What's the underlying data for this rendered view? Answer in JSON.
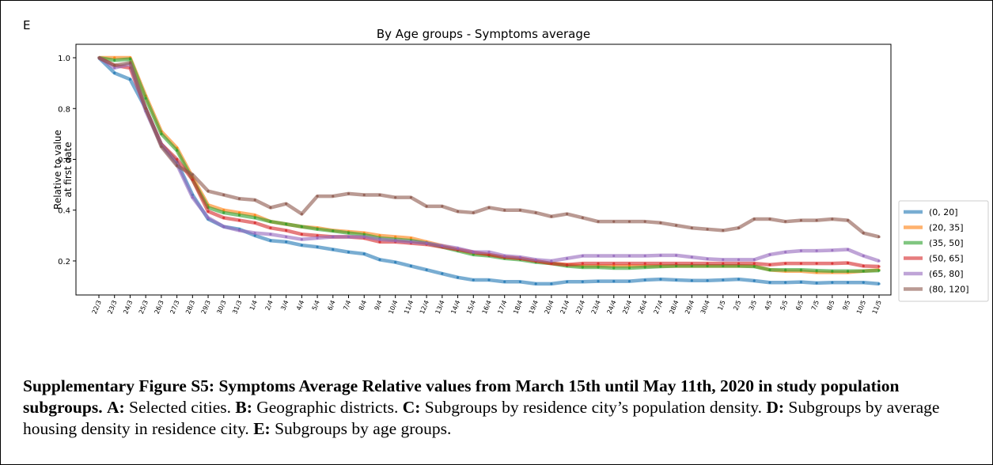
{
  "panel_label": "E",
  "chart_data": {
    "type": "line",
    "title": "By Age groups - Symptoms average",
    "ylabel": [
      "Relative to value",
      "at first date"
    ],
    "x": [
      "22/3",
      "23/3",
      "24/3",
      "25/3",
      "26/3",
      "27/3",
      "28/3",
      "29/3",
      "30/3",
      "31/3",
      "1/4",
      "2/4",
      "3/4",
      "4/4",
      "5/4",
      "6/4",
      "7/4",
      "8/4",
      "9/4",
      "10/4",
      "11/4",
      "12/4",
      "13/4",
      "14/4",
      "15/4",
      "16/4",
      "17/4",
      "18/4",
      "19/4",
      "20/4",
      "21/4",
      "22/4",
      "23/4",
      "24/4",
      "25/4",
      "26/4",
      "27/4",
      "28/4",
      "29/4",
      "30/4",
      "1/5",
      "2/5",
      "3/5",
      "4/5",
      "5/5",
      "6/5",
      "7/5",
      "8/5",
      "9/5",
      "10/5",
      "11/5"
    ],
    "ylim": [
      0.066,
      1.053
    ],
    "yticks": [
      0.2,
      0.4,
      0.6,
      0.8,
      {
        "value": 1,
        "label": "1.0"
      }
    ],
    "legend": "outside-right",
    "series": [
      {
        "name": "(0, 20]",
        "color": "#1f77b4",
        "values": [
          1.0,
          0.94,
          0.915,
          0.8,
          0.66,
          0.59,
          0.46,
          0.365,
          0.335,
          0.325,
          0.3,
          0.28,
          0.275,
          0.262,
          0.255,
          0.245,
          0.235,
          0.228,
          0.205,
          0.195,
          0.18,
          0.165,
          0.15,
          0.135,
          0.125,
          0.125,
          0.118,
          0.118,
          0.11,
          0.11,
          0.118,
          0.118,
          0.12,
          0.12,
          0.12,
          0.125,
          0.128,
          0.125,
          0.123,
          0.123,
          0.125,
          0.128,
          0.122,
          0.115,
          0.115,
          0.117,
          0.113,
          0.115,
          0.115,
          0.115,
          0.11
        ]
      },
      {
        "name": "(20, 35]",
        "color": "#ff7f0e",
        "values": [
          1.0,
          1.0,
          1.0,
          0.85,
          0.71,
          0.645,
          0.53,
          0.42,
          0.4,
          0.39,
          0.38,
          0.355,
          0.345,
          0.335,
          0.33,
          0.32,
          0.315,
          0.31,
          0.3,
          0.295,
          0.29,
          0.275,
          0.26,
          0.245,
          0.23,
          0.225,
          0.215,
          0.21,
          0.2,
          0.19,
          0.185,
          0.18,
          0.18,
          0.18,
          0.18,
          0.18,
          0.18,
          0.18,
          0.18,
          0.18,
          0.18,
          0.18,
          0.18,
          0.165,
          0.16,
          0.16,
          0.155,
          0.155,
          0.155,
          0.16,
          0.165
        ]
      },
      {
        "name": "(35, 50]",
        "color": "#2ca02c",
        "values": [
          1.0,
          0.99,
          0.995,
          0.84,
          0.7,
          0.635,
          0.52,
          0.41,
          0.39,
          0.38,
          0.37,
          0.355,
          0.345,
          0.335,
          0.325,
          0.318,
          0.31,
          0.303,
          0.29,
          0.285,
          0.28,
          0.27,
          0.255,
          0.24,
          0.225,
          0.22,
          0.21,
          0.205,
          0.195,
          0.19,
          0.18,
          0.175,
          0.175,
          0.172,
          0.172,
          0.175,
          0.178,
          0.18,
          0.18,
          0.18,
          0.18,
          0.18,
          0.178,
          0.165,
          0.165,
          0.165,
          0.162,
          0.16,
          0.16,
          0.16,
          0.162
        ]
      },
      {
        "name": "(50, 65]",
        "color": "#d62728",
        "values": [
          1.0,
          0.97,
          0.96,
          0.8,
          0.66,
          0.6,
          0.52,
          0.395,
          0.37,
          0.36,
          0.35,
          0.33,
          0.32,
          0.305,
          0.3,
          0.295,
          0.295,
          0.29,
          0.275,
          0.275,
          0.27,
          0.265,
          0.255,
          0.245,
          0.235,
          0.225,
          0.215,
          0.21,
          0.2,
          0.19,
          0.185,
          0.19,
          0.19,
          0.19,
          0.19,
          0.19,
          0.19,
          0.19,
          0.19,
          0.19,
          0.19,
          0.19,
          0.19,
          0.185,
          0.19,
          0.19,
          0.19,
          0.19,
          0.192,
          0.18,
          0.178
        ]
      },
      {
        "name": "(65, 80]",
        "color": "#9467bd",
        "values": [
          1.0,
          0.96,
          0.975,
          0.79,
          0.655,
          0.58,
          0.45,
          0.37,
          0.335,
          0.32,
          0.31,
          0.305,
          0.295,
          0.285,
          0.29,
          0.295,
          0.295,
          0.295,
          0.285,
          0.28,
          0.275,
          0.27,
          0.26,
          0.25,
          0.235,
          0.235,
          0.22,
          0.215,
          0.205,
          0.2,
          0.21,
          0.22,
          0.22,
          0.22,
          0.22,
          0.22,
          0.222,
          0.222,
          0.215,
          0.208,
          0.205,
          0.205,
          0.205,
          0.225,
          0.235,
          0.24,
          0.24,
          0.242,
          0.245,
          0.22,
          0.2
        ]
      },
      {
        "name": "(80, 120]",
        "color": "#8c564b",
        "values": [
          1.0,
          0.97,
          0.98,
          0.8,
          0.65,
          0.575,
          0.54,
          0.475,
          0.46,
          0.445,
          0.44,
          0.41,
          0.425,
          0.385,
          0.455,
          0.455,
          0.465,
          0.46,
          0.46,
          0.45,
          0.45,
          0.415,
          0.415,
          0.395,
          0.39,
          0.41,
          0.4,
          0.4,
          0.39,
          0.375,
          0.385,
          0.37,
          0.355,
          0.355,
          0.355,
          0.355,
          0.35,
          0.34,
          0.33,
          0.325,
          0.32,
          0.33,
          0.365,
          0.365,
          0.355,
          0.36,
          0.36,
          0.365,
          0.36,
          0.31,
          0.295
        ]
      }
    ]
  },
  "caption": [
    {
      "text": "Supplementary Figure S5: Symptoms Average Relative values from March 15th until May 11th, 2020 in study population subgroups.",
      "bold": true
    },
    {
      "text": " ",
      "bold": false
    },
    {
      "text": "A:",
      "bold": true
    },
    {
      "text": " Selected cities. ",
      "bold": false
    },
    {
      "text": "B:",
      "bold": true
    },
    {
      "text": " Geographic districts. ",
      "bold": false
    },
    {
      "text": "C:",
      "bold": true
    },
    {
      "text": " Subgroups by residence city’s population density. ",
      "bold": false
    },
    {
      "text": "D:",
      "bold": true
    },
    {
      "text": " Subgroups by average housing density in residence city. ",
      "bold": false
    },
    {
      "text": "E:",
      "bold": true
    },
    {
      "text": " Subgroups by age groups.",
      "bold": false
    }
  ]
}
